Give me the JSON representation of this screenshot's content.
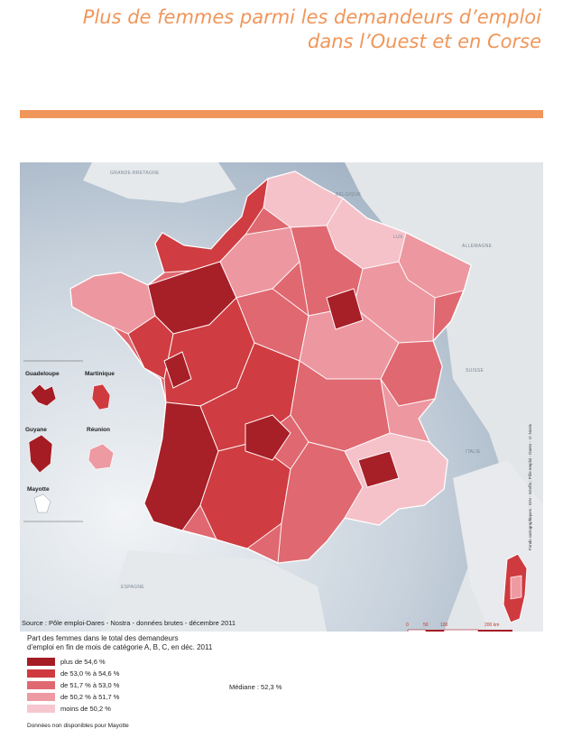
{
  "title": {
    "line1": "Plus de femmes parmi les demandeurs d’emploi",
    "line2": "dans l’Ouest et en Corse"
  },
  "map": {
    "countries": {
      "uk": "GRANDE-BRETAGNE",
      "belgium": "BELGIQUE",
      "luxembourg": "LUX.",
      "germany": "ALLEMAGNE",
      "switzerland": "SUISSE",
      "italy": "ITALIE",
      "spain": "ESPAGNE"
    },
    "overseas": {
      "guadeloupe": "Guadeloupe",
      "martinique": "Martinique",
      "guyane": "Guyane",
      "reunion": "Réunion",
      "mayotte": "Mayotte"
    },
    "scale": [
      "0",
      "50",
      "100",
      "200 km"
    ],
    "credit": "Fonds cartographiques : IGN - Géofla ; Pôle emploi - Dares - © Nostra - 2012"
  },
  "source": "Source : Pôle emploi-Dares - Nostra - données brutes - décembre 2011",
  "legend": {
    "title_line1": "Part des femmes dans le total des demandeurs",
    "title_line2": "d’emploi en fin de mois de catégorie A, B, C, en déc. 2011",
    "classes": [
      {
        "label": "plus de 54,6 %",
        "color": "#a51c24"
      },
      {
        "label": "de 53,0 % à 54,6 %",
        "color": "#cf3a3f"
      },
      {
        "label": "de 51,7 % à 53,0 %",
        "color": "#e06870"
      },
      {
        "label": "de 50,2 % à 51,7 %",
        "color": "#ee9aa3"
      },
      {
        "label": "moins de 50,2 %",
        "color": "#f7c7cf"
      }
    ],
    "note": "Données non disponibles pour Mayotte"
  },
  "median": "Médiane : 52,3 %",
  "colors": {
    "accent": "#f0965a",
    "sea": "#c9d3dd",
    "land": "#e3e6e9"
  }
}
